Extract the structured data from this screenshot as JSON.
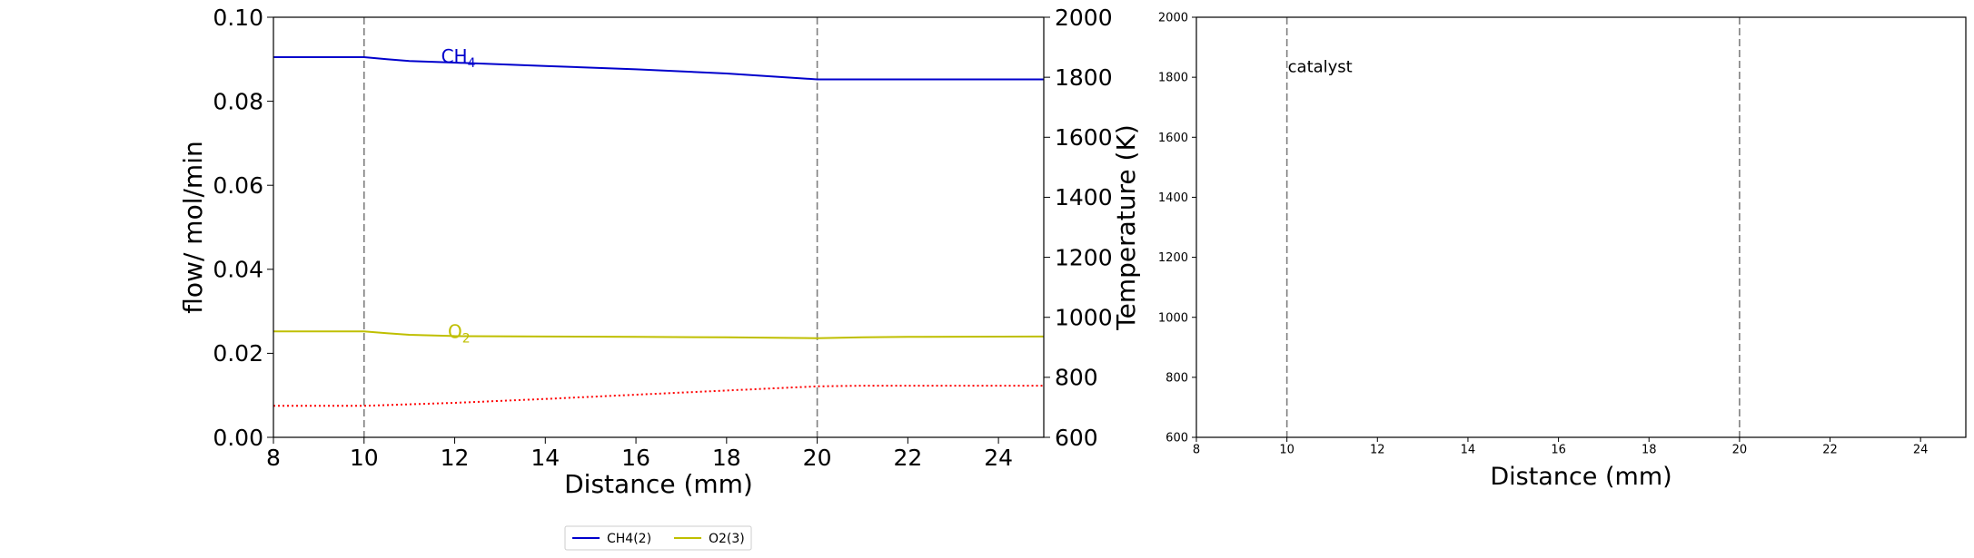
{
  "chart_data": [
    {
      "type": "line",
      "xlabel": "Distance (mm)",
      "ylabel": "flow/ mol/min",
      "y2label": "Temperature (K)",
      "xlim": [
        8,
        25
      ],
      "ylim": [
        0,
        0.1
      ],
      "y2lim": [
        600,
        2000
      ],
      "xticks": [
        "8",
        "10",
        "12",
        "14",
        "16",
        "18",
        "20",
        "22",
        "24"
      ],
      "yticks": [
        "0.00",
        "0.02",
        "0.04",
        "0.06",
        "0.08",
        "0.10"
      ],
      "y2ticks": [
        "600",
        "800",
        "1000",
        "1200",
        "1400",
        "1600",
        "1800",
        "2000"
      ],
      "vlines": [
        10,
        20
      ],
      "series": [
        {
          "name": "CH4(2)",
          "color": "#0000cc",
          "axis": "left",
          "x": [
            8,
            10,
            10.5,
            11,
            12,
            14,
            16,
            18,
            20,
            21,
            22,
            25
          ],
          "y": [
            0.0905,
            0.0905,
            0.09,
            0.0896,
            0.0892,
            0.0884,
            0.0876,
            0.0866,
            0.0852,
            0.0852,
            0.0852,
            0.0852
          ]
        },
        {
          "name": "O2(3)",
          "color": "#bfbf00",
          "axis": "left",
          "x": [
            8,
            10,
            10.5,
            11,
            12,
            14,
            16,
            18,
            20,
            21,
            22,
            25
          ],
          "y": [
            0.0252,
            0.0252,
            0.0248,
            0.0244,
            0.0241,
            0.024,
            0.0239,
            0.0238,
            0.0236,
            0.0238,
            0.0239,
            0.024
          ]
        },
        {
          "color": "#ff0000",
          "axis": "right",
          "style": "dotted",
          "x": [
            8,
            10,
            11,
            12,
            14,
            16,
            18,
            20,
            21,
            22,
            25
          ],
          "y": [
            705,
            705,
            710,
            715,
            728,
            742,
            756,
            770,
            772,
            772,
            772
          ]
        }
      ],
      "annotations": [
        {
          "label": "CH",
          "sub": "4",
          "x": 11.7,
          "y": 0.0905,
          "color": "#0000cc"
        },
        {
          "label": "O",
          "sub": "2",
          "x": 11.85,
          "y": 0.025,
          "color": "#bfbf00"
        }
      ],
      "legend": {
        "placement": "bottom-center",
        "entries": [
          {
            "label": "CH4(2)",
            "color": "#0000cc"
          },
          {
            "label": "O2(3)",
            "color": "#bfbf00"
          }
        ]
      }
    },
    {
      "type": "line",
      "xlabel": "Distance (mm)",
      "xlim": [
        8,
        25
      ],
      "ylim": [
        600,
        2000
      ],
      "xticks": [
        "8",
        "10",
        "12",
        "14",
        "16",
        "18",
        "20",
        "22",
        "24"
      ],
      "yticks": [
        "600",
        "800",
        "1000",
        "1200",
        "1400",
        "1600",
        "1800",
        "2000"
      ],
      "vlines": [
        10,
        20
      ],
      "annotations": [
        {
          "label": "catalyst",
          "x": 10,
          "y": 1835
        }
      ]
    }
  ]
}
